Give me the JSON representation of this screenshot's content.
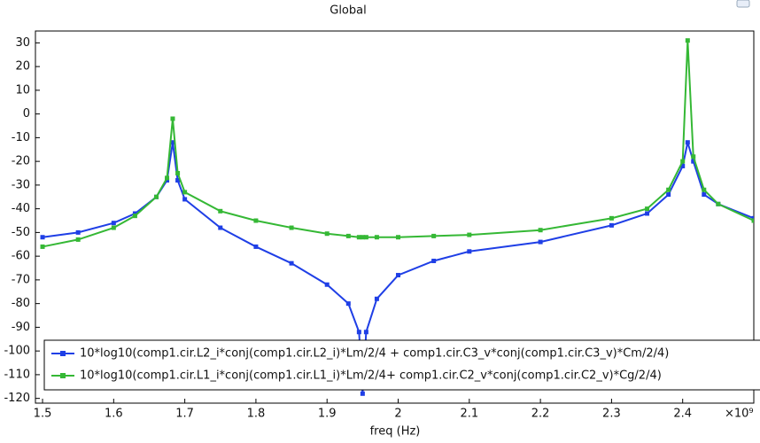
{
  "chart_data": {
    "type": "line",
    "title": "Global",
    "x_label": "freq (Hz)",
    "x_multiplier": "×10⁹",
    "x": [
      1.5,
      1.55,
      1.6,
      1.63,
      1.66,
      1.675,
      1.683,
      1.69,
      1.7,
      1.75,
      1.8,
      1.85,
      1.9,
      1.93,
      1.945,
      1.95,
      1.955,
      1.97,
      2.0,
      2.05,
      2.1,
      2.2,
      2.3,
      2.35,
      2.38,
      2.4,
      2.407,
      2.415,
      2.43,
      2.45,
      2.5
    ],
    "series": [
      {
        "name": "10*log10(comp1.cir.L2_i*conj(comp1.cir.L2_i)*Lm/2/4 + comp1.cir.C3_v*conj(comp1.cir.C3_v)*Cm/2/4)",
        "color": "#1f3fe6",
        "values": [
          -52,
          -50,
          -46,
          -42,
          -35,
          -28,
          -12,
          -28,
          -36,
          -48,
          -56,
          -63,
          -72,
          -80,
          -92,
          -118,
          -92,
          -78,
          -68,
          -62,
          -58,
          -54,
          -47,
          -42,
          -34,
          -22,
          -12,
          -20,
          -34,
          -38,
          -44
        ]
      },
      {
        "name": "10*log10(comp1.cir.L1_i*conj(comp1.cir.L1_i)*Lm/2/4+ comp1.cir.C2_v*conj(comp1.cir.C2_v)*Cg/2/4)",
        "color": "#35b835",
        "values": [
          -56,
          -53,
          -48,
          -43,
          -35,
          -27,
          -2,
          -25,
          -33,
          -41,
          -45,
          -48,
          -50.5,
          -51.5,
          -52,
          -52,
          -52,
          -52,
          -52,
          -51.5,
          -51,
          -49,
          -44,
          -40,
          -32,
          -20,
          31,
          -18,
          -32,
          -38,
          -45
        ]
      }
    ],
    "xlim": [
      1.49,
      2.5
    ],
    "xticks": [
      1.5,
      1.6,
      1.7,
      1.8,
      1.9,
      2,
      2.1,
      2.2,
      2.3,
      2.4
    ],
    "ylim": [
      -122,
      35
    ],
    "yticks": [
      30,
      20,
      10,
      0,
      -10,
      -20,
      -30,
      -40,
      -50,
      -60,
      -70,
      -80,
      -90,
      -100,
      -110,
      -120
    ],
    "grid": false
  }
}
